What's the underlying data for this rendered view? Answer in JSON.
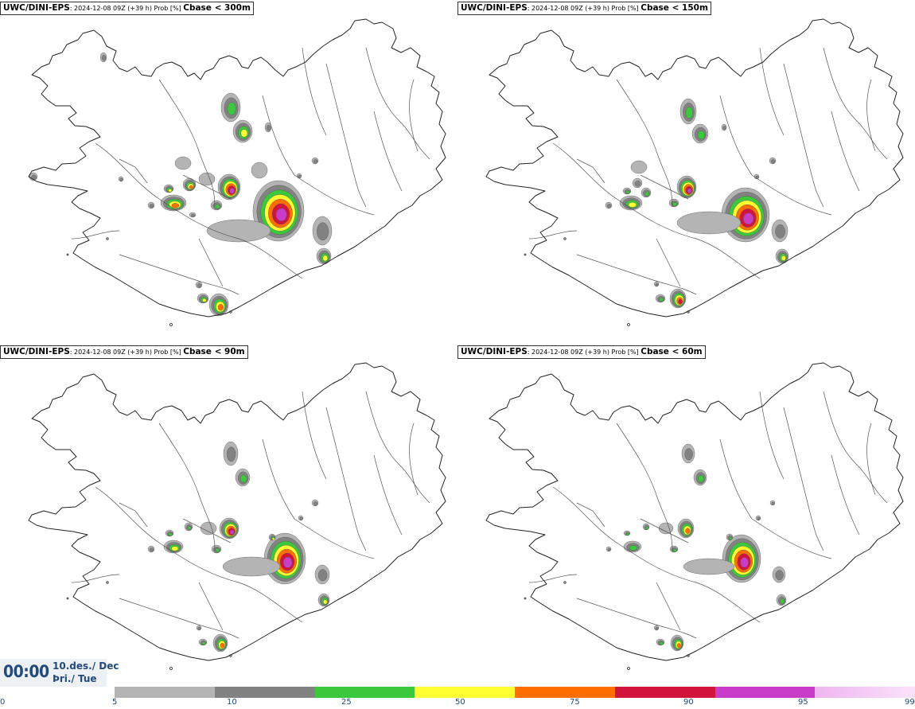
{
  "panels": [
    {
      "title_bold": "UWC/DINI-EPS",
      "title_small": ": 2024-12-08 09Z (+39 h) Prob [%] ",
      "title_field": "Cbase < 300m"
    },
    {
      "title_bold": "UWC/DINI-EPS",
      "title_small": ": 2024-12-08 09Z (+39 h) Prob [%] ",
      "title_field": "Cbase < 150m"
    },
    {
      "title_bold": "UWC/DINI-EPS",
      "title_small": ": 2024-12-08 09Z (+39 h) Prob [%] ",
      "title_field": "Cbase < 90m"
    },
    {
      "title_bold": "UWC/DINI-EPS",
      "title_small": ": 2024-12-08 09Z (+39 h) Prob [%] ",
      "title_field": "Cbase < 60m"
    }
  ],
  "valid_time": "00:00",
  "valid_date_line1": "10.des./ Dec",
  "valid_date_line2": "Þri./ Tue",
  "colorbar": {
    "ticks": [
      "0",
      "5",
      "10",
      "25",
      "50",
      "75",
      "90",
      "95",
      "99"
    ],
    "colors": [
      "#b4b4b4",
      "#828282",
      "#3cc83c",
      "#ffff32",
      "#ff6e00",
      "#d2143c",
      "#c83cc8",
      "#f0b4f0"
    ]
  }
}
